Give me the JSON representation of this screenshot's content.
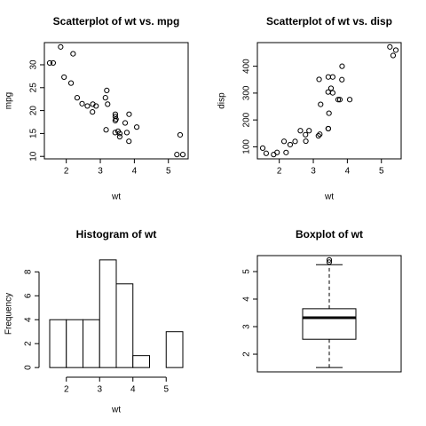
{
  "chart_data": [
    {
      "type": "scatter",
      "title": "Scatterplot of wt vs. mpg",
      "x_label": "wt",
      "y_label": "mpg",
      "x": [
        2.62,
        2.875,
        2.32,
        3.215,
        3.44,
        3.46,
        3.57,
        3.19,
        3.15,
        3.44,
        3.44,
        4.07,
        3.73,
        3.78,
        5.25,
        5.424,
        5.345,
        2.2,
        1.615,
        1.835,
        2.465,
        3.52,
        3.435,
        3.84,
        3.845,
        1.935,
        2.14,
        1.513,
        3.17,
        2.77,
        3.57,
        2.78
      ],
      "values": [
        21.0,
        21.0,
        22.8,
        21.4,
        18.7,
        18.1,
        14.3,
        24.4,
        22.8,
        19.2,
        17.8,
        16.4,
        17.3,
        15.2,
        10.4,
        10.4,
        14.7,
        32.4,
        30.4,
        33.9,
        21.5,
        15.5,
        15.2,
        13.3,
        19.2,
        27.3,
        26.0,
        30.4,
        15.8,
        19.7,
        15.0,
        21.4
      ],
      "color": "#000000",
      "xlim": [
        1.3566,
        5.5804
      ],
      "ylim": [
        9.46,
        34.84
      ],
      "xticks": [
        2,
        3,
        4,
        5
      ],
      "yticks": [
        10,
        15,
        20,
        25,
        30
      ]
    },
    {
      "type": "scatter",
      "title": "Scatterplot of wt vs. disp",
      "x_label": "wt",
      "y_label": "disp",
      "x": [
        2.62,
        2.875,
        2.32,
        3.215,
        3.44,
        3.46,
        3.57,
        3.19,
        3.15,
        3.44,
        3.44,
        4.07,
        3.73,
        3.78,
        5.25,
        5.424,
        5.345,
        2.2,
        1.615,
        1.835,
        2.465,
        3.52,
        3.435,
        3.84,
        3.845,
        1.935,
        2.14,
        1.513,
        3.17,
        2.77,
        3.57,
        2.78
      ],
      "values": [
        160,
        160,
        108,
        258,
        360,
        225,
        360,
        146.7,
        140.8,
        167.6,
        167.6,
        275.8,
        275.8,
        275.8,
        472,
        460,
        440,
        78.7,
        75.7,
        71.1,
        120.1,
        318,
        304,
        350,
        400,
        79,
        120.3,
        95.1,
        351,
        145,
        301,
        121
      ],
      "color": "#000000",
      "xlim": [
        1.3566,
        5.5804
      ],
      "ylim": [
        55.06,
        488.04
      ],
      "xticks": [
        2,
        3,
        4,
        5
      ],
      "yticks": [
        100,
        200,
        300,
        400
      ]
    },
    {
      "type": "histogram",
      "title": "Histogram of wt",
      "x_label": "wt",
      "y_label": "Frequency",
      "bins": [
        1.5,
        2.0,
        2.5,
        3.0,
        3.5,
        4.0,
        4.5,
        5.0,
        5.5
      ],
      "values": [
        4,
        4,
        4,
        9,
        7,
        1,
        0,
        3
      ],
      "color": "#ffffff",
      "xlim": [
        1.34,
        5.66
      ],
      "ylim": [
        -0.36,
        9.36
      ],
      "xticks": [
        2,
        3,
        4,
        5
      ],
      "yticks": [
        0,
        2,
        4,
        6,
        8
      ]
    },
    {
      "type": "box",
      "title": "Boxplot of wt",
      "values": {
        "min": 1.513,
        "q1": 2.5425,
        "median": 3.325,
        "q3": 3.65,
        "max": 5.25,
        "outliers": [
          5.345,
          5.424
        ]
      },
      "color": "#ffffff",
      "ylim": [
        1.357,
        5.58
      ],
      "yticks": [
        2,
        3,
        4,
        5
      ]
    }
  ]
}
